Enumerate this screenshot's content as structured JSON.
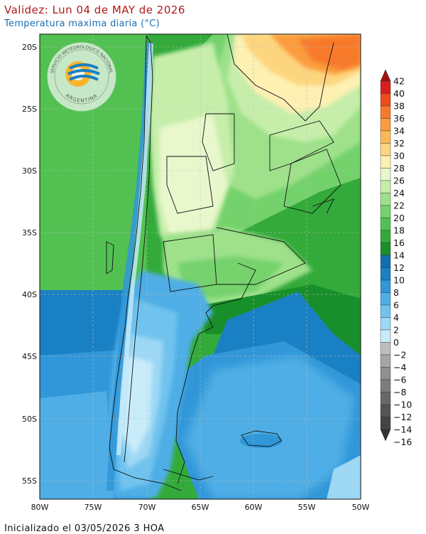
{
  "header": {
    "title": "Validez: Lun 04 de MAY de 2026",
    "subtitle": "Temperatura maxima diaria (°C)"
  },
  "footer": {
    "init_text": "Inicializado el 03/05/2026 3 HOA"
  },
  "logo": {
    "text_top": "SERVICIO METEOROLÓGICO NACIONAL",
    "text_bottom": "ARGENTINA",
    "icon": "smn-logo-icon"
  },
  "map": {
    "lat_labels": [
      "20S",
      "25S",
      "30S",
      "35S",
      "40S",
      "45S",
      "50S",
      "55S"
    ],
    "lon_labels": [
      "80W",
      "75W",
      "70W",
      "65W",
      "60W",
      "55W",
      "50W"
    ]
  },
  "colorbar": {
    "labels": [
      "42",
      "40",
      "38",
      "36",
      "34",
      "32",
      "30",
      "28",
      "26",
      "24",
      "22",
      "20",
      "18",
      "16",
      "14",
      "12",
      "10",
      "8",
      "6",
      "4",
      "2",
      "0",
      "−2",
      "−4",
      "−6",
      "−8",
      "−10",
      "−12",
      "−14",
      "−16"
    ],
    "colors": [
      "#a01010",
      "#d81e1e",
      "#ee4a1a",
      "#f77a2a",
      "#fb9c3e",
      "#fdb953",
      "#fdd57e",
      "#fdf0b2",
      "#e8f8cc",
      "#c6eeaa",
      "#9ee18a",
      "#74d26c",
      "#52c152",
      "#33aa3a",
      "#198f2b",
      "#116fb0",
      "#1a80c4",
      "#3197d8",
      "#4faee5",
      "#70c3ee",
      "#9dd8f5",
      "#c9ecfa",
      "#bdbdbd",
      "#a5a5a5",
      "#909090",
      "#7c7c7c",
      "#686868",
      "#555555",
      "#444444",
      "#333333"
    ]
  }
}
